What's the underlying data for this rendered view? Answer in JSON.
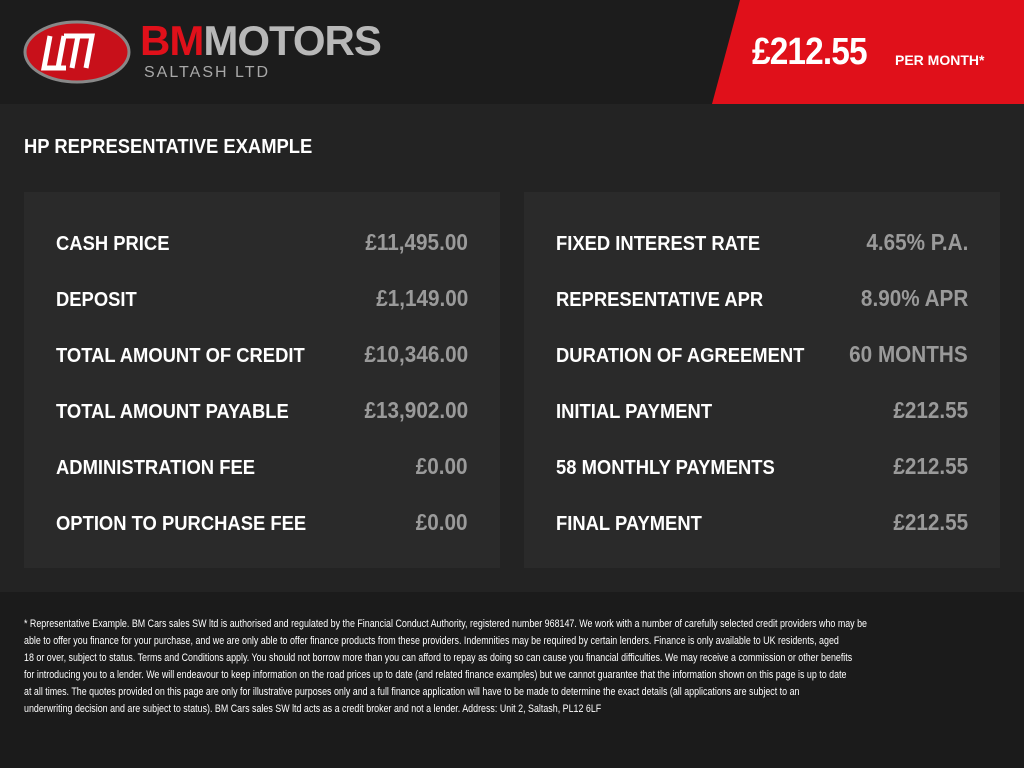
{
  "header": {
    "brand_primary": "BM",
    "brand_secondary": "MOTORS",
    "brand_sub": "SALTASH LTD",
    "price": "£212.55",
    "price_suffix": "PER MONTH*"
  },
  "section_title": "HP REPRESENTATIVE EXAMPLE",
  "left_panel": {
    "rows": [
      [
        "CASH PRICE",
        "£11,495.00"
      ],
      [
        "DEPOSIT",
        "£1,149.00"
      ],
      [
        "TOTAL AMOUNT OF CREDIT",
        "£10,346.00"
      ],
      [
        "TOTAL AMOUNT PAYABLE",
        "£13,902.00"
      ],
      [
        "ADMINISTRATION FEE",
        "£0.00"
      ],
      [
        "OPTION TO PURCHASE FEE",
        "£0.00"
      ]
    ]
  },
  "right_panel": {
    "rows": [
      [
        "FIXED INTEREST RATE",
        "4.65% P.A."
      ],
      [
        "REPRESENTATIVE APR",
        "8.90% APR"
      ],
      [
        "DURATION OF AGREEMENT",
        "60 MONTHS"
      ],
      [
        "INITIAL PAYMENT",
        "£212.55"
      ],
      [
        "58 MONTHLY PAYMENTS",
        "£212.55"
      ],
      [
        "FINAL PAYMENT",
        "£212.55"
      ]
    ]
  },
  "disclaimer": {
    "lines": [
      "* Representative Example. BM Cars sales SW ltd is authorised and regulated by the Financial Conduct Authority, registered number 968147. We work with a number of carefully selected credit providers who may be",
      "able to offer you finance for your purchase, and we are only able to offer finance products from these providers. Indemnities may be required by certain lenders. Finance is only available to UK residents, aged",
      "18 or over, subject to status. Terms and Conditions apply. You should not borrow more than you can afford to repay as doing so can cause you financial difficulties. We may receive a commission or other benefits",
      "for introducing you to a lender. We will endeavour to keep information on the road prices up to date (and related finance examples) but we cannot guarantee that the information shown on this page is up to date",
      "at all times. The quotes provided on this page are only for illustrative purposes only and a full finance application will have to be made to determine the exact details (all applications are subject to an",
      "underwriting decision and are subject to status). BM Cars sales SW ltd acts as a credit broker and not a lender. Address: Unit 2, Saltash, PL12 6LF"
    ]
  }
}
